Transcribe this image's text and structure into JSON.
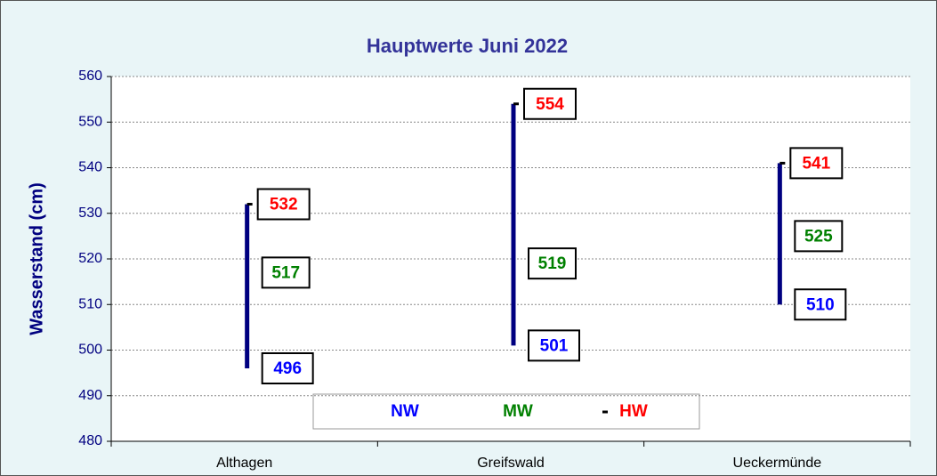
{
  "chart_data": {
    "type": "hilo",
    "title": "Hauptwerte  Juni 2022",
    "y_label": "Wasserstand (cm)",
    "categories": [
      "Althagen",
      "Greifswald",
      "Ueckermünde"
    ],
    "series": [
      {
        "name": "NW",
        "color": "#0000ff",
        "values": [
          496,
          501,
          510
        ]
      },
      {
        "name": "MW",
        "color": "#008000",
        "values": [
          517,
          519,
          525
        ]
      },
      {
        "name": "HW",
        "color": "#ff0000",
        "values": [
          532,
          554,
          541
        ]
      }
    ],
    "bar_color": "#000080",
    "ylim": [
      480,
      560
    ],
    "yticks": [
      480,
      490,
      500,
      510,
      520,
      530,
      540,
      550,
      560
    ],
    "grid": true
  }
}
